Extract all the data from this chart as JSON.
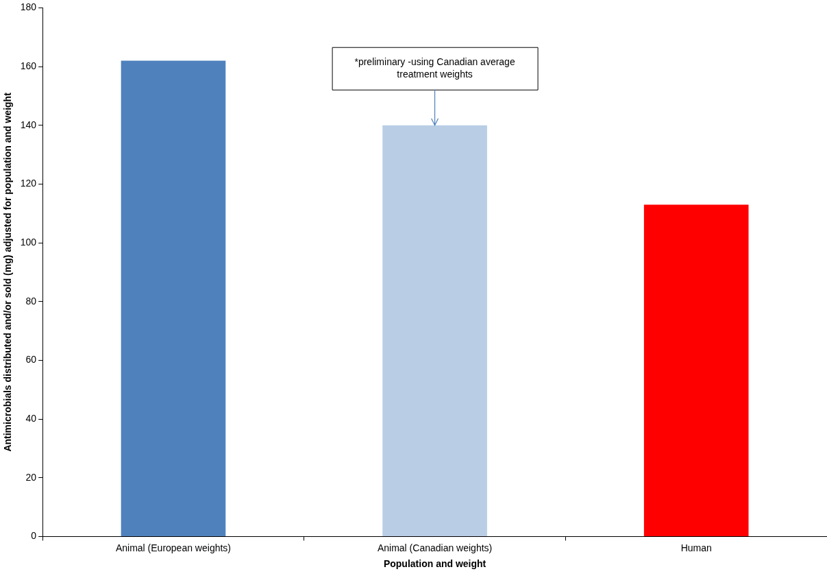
{
  "chart_data": {
    "type": "bar",
    "xlabel": "Population and weight",
    "ylabel": "Antimicrobials distributed and/or sold (mg) adjusted for population and weight",
    "categories": [
      "Animal (European weights)",
      "Animal (Canadian weights)",
      "Human"
    ],
    "values": [
      162,
      140,
      113
    ],
    "colors": [
      "#4f81bd",
      "#b9cde5",
      "#ff0000"
    ],
    "ylim": [
      0,
      180
    ],
    "yticks": [
      0,
      20,
      40,
      60,
      80,
      100,
      120,
      140,
      160,
      180
    ],
    "grid": false,
    "legend": false,
    "annotations": [
      {
        "text": "*preliminary -using Canadian average treatment weights",
        "x": "Animal (Canadian weights)",
        "y": 140
      }
    ]
  }
}
